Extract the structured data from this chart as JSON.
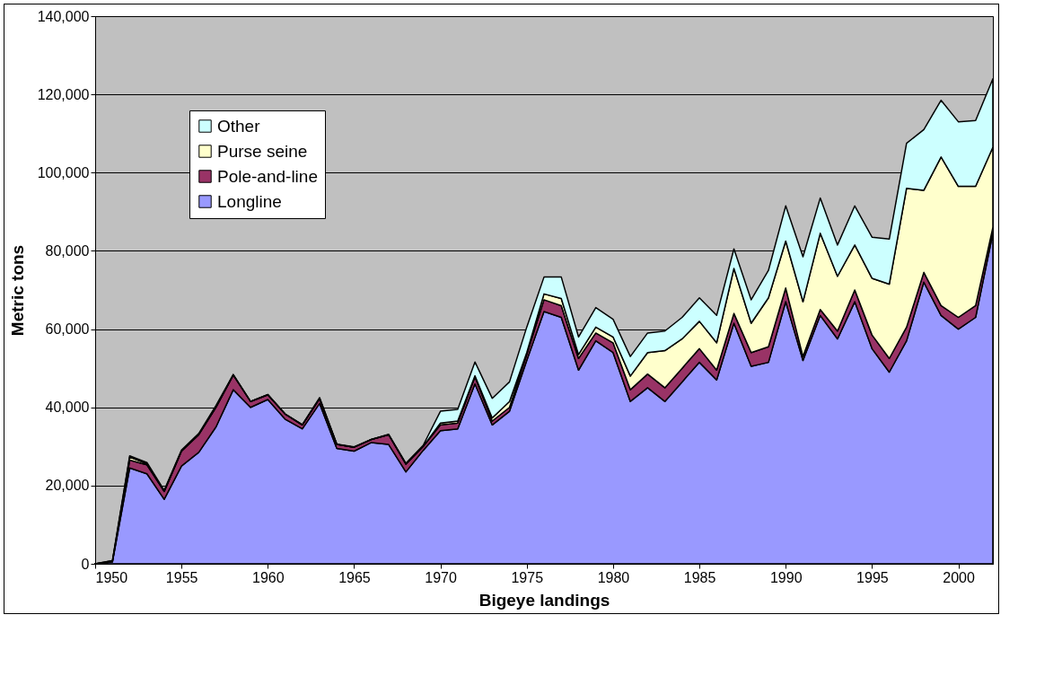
{
  "chart_data": {
    "type": "area",
    "stacked": true,
    "xlabel": "Bigeye landings",
    "ylabel": "Metric tons",
    "x": [
      1950,
      1951,
      1952,
      1953,
      1954,
      1955,
      1956,
      1957,
      1958,
      1959,
      1960,
      1961,
      1962,
      1963,
      1964,
      1965,
      1966,
      1967,
      1968,
      1969,
      1970,
      1971,
      1972,
      1973,
      1974,
      1975,
      1976,
      1977,
      1978,
      1979,
      1980,
      1981,
      1982,
      1983,
      1984,
      1985,
      1986,
      1987,
      1988,
      1989,
      1990,
      1991,
      1992,
      1993,
      1994,
      1995,
      1996,
      1997,
      1998,
      1999,
      2000,
      2001,
      2002
    ],
    "series": [
      {
        "name": "Longline",
        "color": "#9999ff",
        "values": [
          0,
          500,
          24500,
          23000,
          16500,
          25000,
          28500,
          35000,
          44500,
          40000,
          42000,
          37000,
          34500,
          41000,
          29500,
          28800,
          31000,
          30500,
          23500,
          29000,
          34000,
          34500,
          46000,
          35500,
          39000,
          52000,
          64500,
          63000,
          49500,
          57000,
          54000,
          41500,
          45000,
          41500,
          46500,
          51500,
          47000,
          61500,
          50500,
          51500,
          67000,
          52000,
          63500,
          57500,
          67000,
          55000,
          49000,
          57000,
          72000,
          63500,
          60000,
          63000,
          84500
        ]
      },
      {
        "name": "Pole-and-line",
        "color": "#993366",
        "values": [
          0,
          0,
          2000,
          2300,
          2000,
          3800,
          4500,
          5000,
          3800,
          1500,
          1200,
          1300,
          1000,
          1200,
          1000,
          1000,
          800,
          2500,
          2000,
          1000,
          1500,
          1500,
          1800,
          1000,
          1000,
          1500,
          3000,
          3000,
          3000,
          2000,
          2500,
          3000,
          3500,
          3500,
          3500,
          3500,
          2500,
          2500,
          3500,
          4000,
          3500,
          1000,
          1500,
          2000,
          3000,
          3500,
          3500,
          3500,
          2500,
          2500,
          3000,
          3000,
          1500
        ]
      },
      {
        "name": "Purse seine",
        "color": "#ffffcc",
        "values": [
          0,
          300,
          800,
          300,
          0,
          0,
          0,
          0,
          0,
          0,
          0,
          0,
          0,
          0,
          0,
          0,
          0,
          0,
          0,
          0,
          500,
          500,
          300,
          800,
          1500,
          500,
          1500,
          1800,
          1000,
          1500,
          1500,
          3500,
          5500,
          9500,
          7500,
          7000,
          7000,
          11500,
          7500,
          12500,
          12000,
          14000,
          19500,
          14000,
          11500,
          14500,
          19000,
          35500,
          21000,
          38000,
          33500,
          30500,
          20500
        ]
      },
      {
        "name": "Other",
        "color": "#ccffff",
        "values": [
          0,
          0,
          300,
          300,
          300,
          300,
          300,
          500,
          100,
          0,
          100,
          0,
          100,
          300,
          100,
          100,
          0,
          100,
          200,
          300,
          3000,
          3000,
          3500,
          5000,
          5000,
          6500,
          4300,
          5500,
          4500,
          5000,
          4500,
          5000,
          5000,
          5000,
          5500,
          6000,
          7000,
          5000,
          6000,
          7000,
          9000,
          11500,
          9000,
          8000,
          10000,
          10500,
          11500,
          11500,
          15500,
          14500,
          16500,
          16800,
          17500
        ]
      }
    ],
    "xlim": [
      1950,
      2002
    ],
    "xticks": [
      1950,
      1955,
      1960,
      1965,
      1970,
      1975,
      1980,
      1985,
      1990,
      1995,
      2000
    ],
    "ylim": [
      0,
      140000
    ],
    "yticks": [
      {
        "value": 0,
        "label": "0"
      },
      {
        "value": 20000,
        "label": "20,000"
      },
      {
        "value": 40000,
        "label": "40,000"
      },
      {
        "value": 60000,
        "label": "60,000"
      },
      {
        "value": 80000,
        "label": "80,000"
      },
      {
        "value": 100000,
        "label": "100,000"
      },
      {
        "value": 120000,
        "label": "120,000"
      },
      {
        "value": 140000,
        "label": "140,000"
      }
    ],
    "grid": "y",
    "legend": "top left"
  }
}
